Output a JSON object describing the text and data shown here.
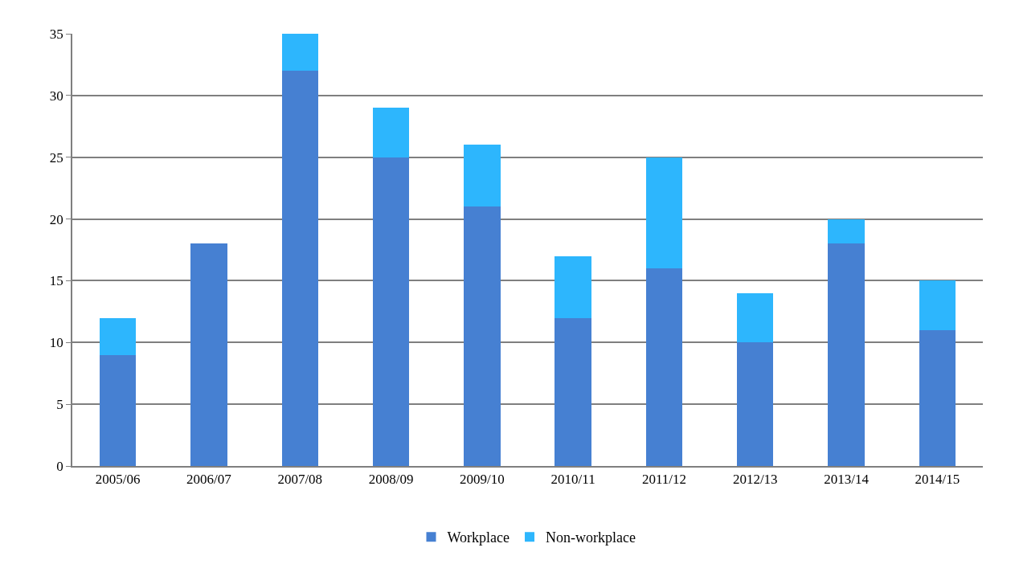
{
  "chart_data": {
    "type": "bar",
    "stacked": true,
    "categories": [
      "2005/06",
      "2006/07",
      "2007/08",
      "2008/09",
      "2009/10",
      "2010/11",
      "2011/12",
      "2012/13",
      "2013/14",
      "2014/15"
    ],
    "series": [
      {
        "name": "Workplace",
        "color": "#4680d2",
        "values": [
          9,
          18,
          32,
          25,
          21,
          12,
          16,
          10,
          18,
          11
        ]
      },
      {
        "name": "Non-workplace",
        "color": "#2db6fd",
        "values": [
          3,
          0,
          3,
          4,
          5,
          5,
          9,
          4,
          2,
          4
        ]
      }
    ],
    "ylim": [
      0,
      35
    ],
    "yticks": [
      0,
      5,
      10,
      15,
      20,
      25,
      30,
      35
    ],
    "grid": "y",
    "legend": "bottom"
  }
}
